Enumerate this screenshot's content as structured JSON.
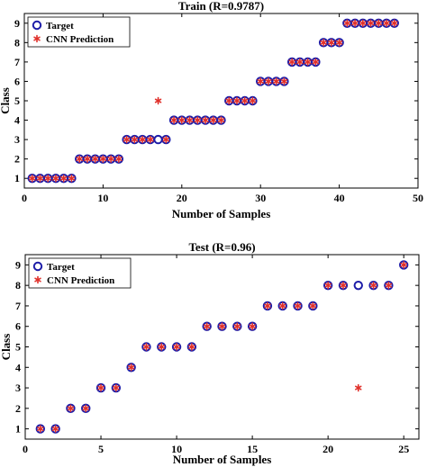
{
  "chart_data": [
    {
      "type": "scatter",
      "title": "Train (R=0.9787)",
      "xlabel": "Number of Samples",
      "ylabel": "Class",
      "xlim": [
        0,
        50
      ],
      "ylim": [
        0.5,
        9.5
      ],
      "xticks": [
        0,
        10,
        20,
        30,
        40,
        50
      ],
      "yticks": [
        1,
        2,
        3,
        4,
        5,
        6,
        7,
        8,
        9
      ],
      "grid": false,
      "legend_position": "top-left",
      "series": [
        {
          "name": "Target",
          "marker": "circle",
          "color": "#1c1ca8",
          "x": [
            1,
            2,
            3,
            4,
            5,
            6,
            7,
            8,
            9,
            10,
            11,
            12,
            13,
            14,
            15,
            16,
            17,
            18,
            19,
            20,
            21,
            22,
            23,
            24,
            25,
            26,
            27,
            28,
            29,
            30,
            31,
            32,
            33,
            34,
            35,
            36,
            37,
            38,
            39,
            40,
            41,
            42,
            43,
            44,
            45,
            46,
            47
          ],
          "y": [
            1,
            1,
            1,
            1,
            1,
            1,
            2,
            2,
            2,
            2,
            2,
            2,
            3,
            3,
            3,
            3,
            3,
            3,
            4,
            4,
            4,
            4,
            4,
            4,
            4,
            5,
            5,
            5,
            5,
            6,
            6,
            6,
            6,
            7,
            7,
            7,
            7,
            8,
            8,
            8,
            9,
            9,
            9,
            9,
            9,
            9,
            9
          ]
        },
        {
          "name": "CNN Prediction",
          "marker": "asterisk",
          "color": "#e0302a",
          "x": [
            1,
            2,
            3,
            4,
            5,
            6,
            7,
            8,
            9,
            10,
            11,
            12,
            13,
            14,
            15,
            16,
            17,
            18,
            19,
            20,
            21,
            22,
            23,
            24,
            25,
            26,
            27,
            28,
            29,
            30,
            31,
            32,
            33,
            34,
            35,
            36,
            37,
            38,
            39,
            40,
            41,
            42,
            43,
            44,
            45,
            46,
            47
          ],
          "y": [
            1,
            1,
            1,
            1,
            1,
            1,
            2,
            2,
            2,
            2,
            2,
            2,
            3,
            3,
            3,
            3,
            5,
            3,
            4,
            4,
            4,
            4,
            4,
            4,
            4,
            5,
            5,
            5,
            5,
            6,
            6,
            6,
            6,
            7,
            7,
            7,
            7,
            8,
            8,
            8,
            9,
            9,
            9,
            9,
            9,
            9,
            9
          ]
        }
      ]
    },
    {
      "type": "scatter",
      "title": "Test (R=0.96)",
      "xlabel": "Number of Samples",
      "ylabel": "Class",
      "xlim": [
        0,
        26
      ],
      "ylim": [
        0.5,
        9.5
      ],
      "xticks": [
        0,
        5,
        10,
        15,
        20,
        25
      ],
      "yticks": [
        1,
        2,
        3,
        4,
        5,
        6,
        7,
        8,
        9
      ],
      "grid": false,
      "legend_position": "top-left",
      "series": [
        {
          "name": "Target",
          "marker": "circle",
          "color": "#1c1ca8",
          "x": [
            1,
            2,
            3,
            4,
            5,
            6,
            7,
            8,
            9,
            10,
            11,
            12,
            13,
            14,
            15,
            16,
            17,
            18,
            19,
            20,
            21,
            22,
            23,
            24,
            25
          ],
          "y": [
            1,
            1,
            2,
            2,
            3,
            3,
            4,
            5,
            5,
            5,
            5,
            6,
            6,
            6,
            6,
            7,
            7,
            7,
            7,
            8,
            8,
            8,
            8,
            8,
            9
          ]
        },
        {
          "name": "CNN Prediction",
          "marker": "asterisk",
          "color": "#e0302a",
          "x": [
            1,
            2,
            3,
            4,
            5,
            6,
            7,
            8,
            9,
            10,
            11,
            12,
            13,
            14,
            15,
            16,
            17,
            18,
            19,
            20,
            21,
            22,
            23,
            24,
            25
          ],
          "y": [
            1,
            1,
            2,
            2,
            3,
            3,
            4,
            5,
            5,
            5,
            5,
            6,
            6,
            6,
            6,
            7,
            7,
            7,
            7,
            8,
            8,
            3,
            8,
            8,
            9
          ]
        }
      ]
    }
  ]
}
